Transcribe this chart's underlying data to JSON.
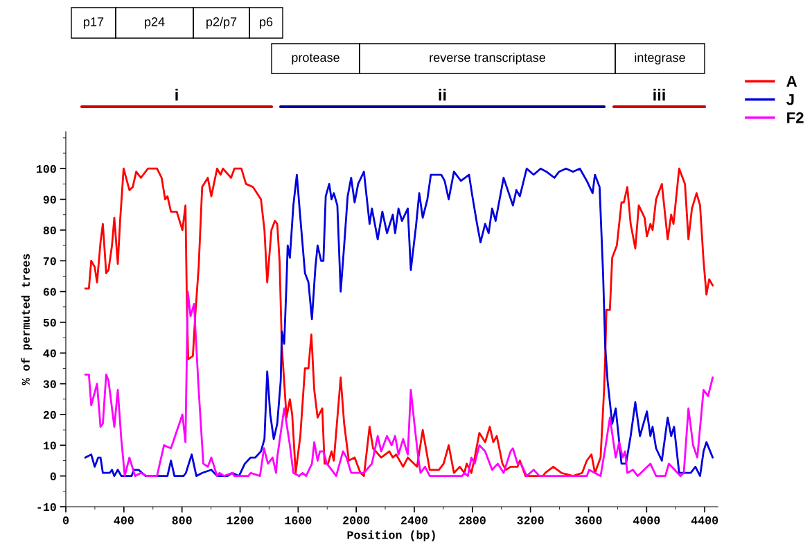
{
  "chart_data": {
    "type": "line",
    "xlabel": "Position (bp)",
    "ylabel": "% of permuted trees",
    "xlim": [
      0,
      4490
    ],
    "xticks": [
      0,
      400,
      800,
      1200,
      1600,
      2000,
      2400,
      2800,
      3200,
      3600,
      4000,
      4400
    ],
    "ylim": [
      -10,
      112
    ],
    "yticks": [
      -10,
      0,
      10,
      20,
      30,
      40,
      50,
      60,
      70,
      80,
      90,
      100
    ],
    "legend": "top right",
    "annotations": [
      "p17",
      "p24",
      "p2/p7",
      "p6",
      "protease",
      "reverse transcriptase",
      "integrase",
      "i",
      "ii",
      "iii"
    ],
    "series": [
      {
        "name": "A",
        "color": "#ff0000",
        "x": [
          135,
          159,
          175,
          199,
          215,
          239,
          255,
          278,
          294,
          318,
          334,
          358,
          374,
          398,
          438,
          461,
          485,
          517,
          565,
          628,
          660,
          684,
          700,
          724,
          764,
          803,
          824,
          835,
          843,
          875,
          891,
          915,
          939,
          978,
          1002,
          1042,
          1066,
          1082,
          1138,
          1161,
          1209,
          1241,
          1289,
          1344,
          1368,
          1387,
          1416,
          1440,
          1456,
          1472,
          1488,
          1520,
          1543,
          1559,
          1583,
          1615,
          1647,
          1671,
          1691,
          1711,
          1734,
          1766,
          1782,
          1806,
          1830,
          1846,
          1893,
          1917,
          1949,
          1989,
          2029,
          2053,
          2092,
          2116,
          2172,
          2228,
          2252,
          2275,
          2323,
          2355,
          2419,
          2458,
          2506,
          2570,
          2602,
          2637,
          2673,
          2713,
          2745,
          2761,
          2793,
          2816,
          2848,
          2888,
          2920,
          2944,
          2968,
          3007,
          3031,
          3063,
          3111,
          3127,
          3166,
          3286,
          3302,
          3357,
          3413,
          3493,
          3556,
          3588,
          3620,
          3644,
          3683,
          3707,
          3715,
          3723,
          3747,
          3763,
          3795,
          3827,
          3843,
          3867,
          3890,
          3922,
          3946,
          3986,
          4002,
          4026,
          4041,
          4065,
          4105,
          4145,
          4169,
          4185,
          4224,
          4264,
          4288,
          4312,
          4344,
          4368,
          4392,
          4412,
          4431,
          4455
        ],
        "values": [
          61,
          61,
          70,
          68,
          63,
          76,
          82,
          66,
          67,
          75,
          84,
          69,
          83,
          100,
          93,
          94,
          99,
          97,
          100,
          100,
          97,
          90,
          91,
          86,
          86,
          80,
          88,
          52,
          38,
          39,
          52,
          68,
          94,
          97,
          91,
          100,
          98,
          100,
          97,
          100,
          100,
          95,
          94,
          90,
          80,
          63,
          80,
          83,
          82,
          70,
          42,
          19,
          25,
          20,
          1,
          13,
          35,
          35,
          46,
          28,
          19,
          22,
          4,
          4,
          8,
          5,
          32,
          17,
          5,
          6,
          1,
          0,
          16,
          9,
          6,
          8,
          6,
          7,
          3,
          6,
          3,
          15,
          2,
          2,
          4,
          10,
          1,
          3,
          1,
          4,
          1,
          6,
          14,
          11,
          16,
          11,
          13,
          4,
          2,
          3,
          3,
          5,
          0,
          0,
          1,
          3,
          1,
          0,
          1,
          5,
          7,
          1,
          6,
          28,
          39,
          54,
          54,
          71,
          75,
          89,
          89,
          94,
          82,
          74,
          88,
          84,
          78,
          82,
          80,
          90,
          95,
          77,
          85,
          82,
          100,
          95,
          77,
          87,
          92,
          88,
          70,
          59,
          64,
          62
        ]
      },
      {
        "name": "J",
        "color": "#0000dd",
        "x": [
          135,
          175,
          199,
          223,
          239,
          255,
          302,
          318,
          334,
          358,
          382,
          453,
          469,
          501,
          525,
          549,
          700,
          724,
          748,
          811,
          827,
          867,
          899,
          939,
          1002,
          1042,
          1114,
          1146,
          1193,
          1233,
          1273,
          1305,
          1344,
          1368,
          1387,
          1408,
          1432,
          1456,
          1480,
          1488,
          1504,
          1520,
          1528,
          1543,
          1567,
          1591,
          1615,
          1647,
          1671,
          1695,
          1719,
          1734,
          1758,
          1774,
          1790,
          1814,
          1830,
          1846,
          1870,
          1893,
          1917,
          1941,
          1965,
          1989,
          2013,
          2053,
          2092,
          2108,
          2148,
          2180,
          2212,
          2252,
          2268,
          2291,
          2315,
          2355,
          2376,
          2411,
          2434,
          2458,
          2490,
          2514,
          2586,
          2609,
          2637,
          2673,
          2721,
          2777,
          2800,
          2832,
          2856,
          2888,
          2912,
          2936,
          2960,
          3015,
          3079,
          3103,
          3127,
          3174,
          3222,
          3270,
          3310,
          3365,
          3397,
          3445,
          3493,
          3540,
          3588,
          3628,
          3644,
          3676,
          3700,
          3715,
          3731,
          3763,
          3787,
          3827,
          3858,
          3890,
          3922,
          3954,
          4002,
          4026,
          4041,
          4065,
          4105,
          4145,
          4169,
          4189,
          4224,
          4304,
          4336,
          4368,
          4392,
          4412,
          4455
        ],
        "values": [
          6,
          7,
          3,
          6,
          6,
          1,
          1,
          2,
          0,
          2,
          0,
          0,
          2,
          2,
          1,
          0,
          0,
          5,
          0,
          0,
          1,
          7,
          0,
          1,
          2,
          0,
          0,
          1,
          0,
          4,
          6,
          6,
          8,
          12,
          34,
          20,
          12,
          17,
          31,
          47,
          43,
          63,
          75,
          71,
          88,
          98,
          84,
          66,
          63,
          51,
          68,
          75,
          70,
          70,
          91,
          95,
          90,
          92,
          88,
          60,
          75,
          91,
          97,
          89,
          95,
          99,
          82,
          87,
          77,
          86,
          79,
          85,
          79,
          87,
          83,
          87,
          67,
          81,
          92,
          84,
          90,
          98,
          98,
          96,
          90,
          99,
          96,
          98,
          91,
          82,
          76,
          82,
          79,
          87,
          83,
          97,
          88,
          93,
          91,
          100,
          98,
          100,
          99,
          97,
          99,
          100,
          99,
          100,
          96,
          92,
          98,
          94,
          66,
          42,
          31,
          17,
          22,
          4,
          4,
          13,
          24,
          13,
          21,
          13,
          16,
          9,
          5,
          19,
          13,
          16,
          1,
          1,
          3,
          0,
          8,
          11,
          6
        ]
      },
      {
        "name": "F2",
        "color": "#ff00ff",
        "x": [
          135,
          159,
          175,
          215,
          239,
          255,
          278,
          294,
          334,
          358,
          382,
          406,
          438,
          477,
          517,
          557,
          628,
          676,
          724,
          803,
          824,
          840,
          859,
          883,
          915,
          947,
          978,
          1002,
          1042,
          1058,
          1090,
          1146,
          1161,
          1257,
          1273,
          1337,
          1365,
          1392,
          1424,
          1448,
          1456,
          1504,
          1543,
          1567,
          1607,
          1631,
          1655,
          1695,
          1711,
          1734,
          1750,
          1774,
          1798,
          1862,
          1909,
          1933,
          1965,
          2053,
          2108,
          2148,
          2172,
          2212,
          2244,
          2268,
          2291,
          2323,
          2355,
          2376,
          2403,
          2427,
          2443,
          2474,
          2506,
          2729,
          2745,
          2769,
          2793,
          2816,
          2848,
          2888,
          2936,
          2975,
          3015,
          3063,
          3079,
          3111,
          3135,
          3174,
          3222,
          3262,
          3588,
          3604,
          3683,
          3715,
          3747,
          3787,
          3811,
          3835,
          3851,
          3867,
          3906,
          3938,
          4026,
          4065,
          4129,
          4153,
          4193,
          4232,
          4256,
          4288,
          4320,
          4349,
          4392,
          4423,
          4455
        ],
        "values": [
          33,
          33,
          23,
          30,
          16,
          17,
          33,
          31,
          16,
          28,
          12,
          0,
          6,
          0,
          1,
          0,
          0,
          10,
          9,
          20,
          11,
          60,
          52,
          56,
          28,
          4,
          3,
          6,
          0,
          1,
          0,
          1,
          0,
          0,
          1,
          0,
          9,
          4,
          6,
          1,
          6,
          22,
          10,
          1,
          0,
          1,
          0,
          4,
          11,
          5,
          8,
          8,
          4,
          0,
          8,
          6,
          1,
          1,
          4,
          13,
          8,
          13,
          10,
          13,
          7,
          12,
          7,
          28,
          16,
          6,
          1,
          3,
          0,
          0,
          1,
          0,
          6,
          4,
          10,
          8,
          2,
          4,
          1,
          8,
          9,
          4,
          4,
          0,
          2,
          0,
          0,
          2,
          0,
          9,
          19,
          6,
          11,
          6,
          8,
          1,
          2,
          0,
          4,
          0,
          0,
          4,
          2,
          0,
          1,
          22,
          10,
          6,
          28,
          26,
          32
        ]
      }
    ]
  }
}
